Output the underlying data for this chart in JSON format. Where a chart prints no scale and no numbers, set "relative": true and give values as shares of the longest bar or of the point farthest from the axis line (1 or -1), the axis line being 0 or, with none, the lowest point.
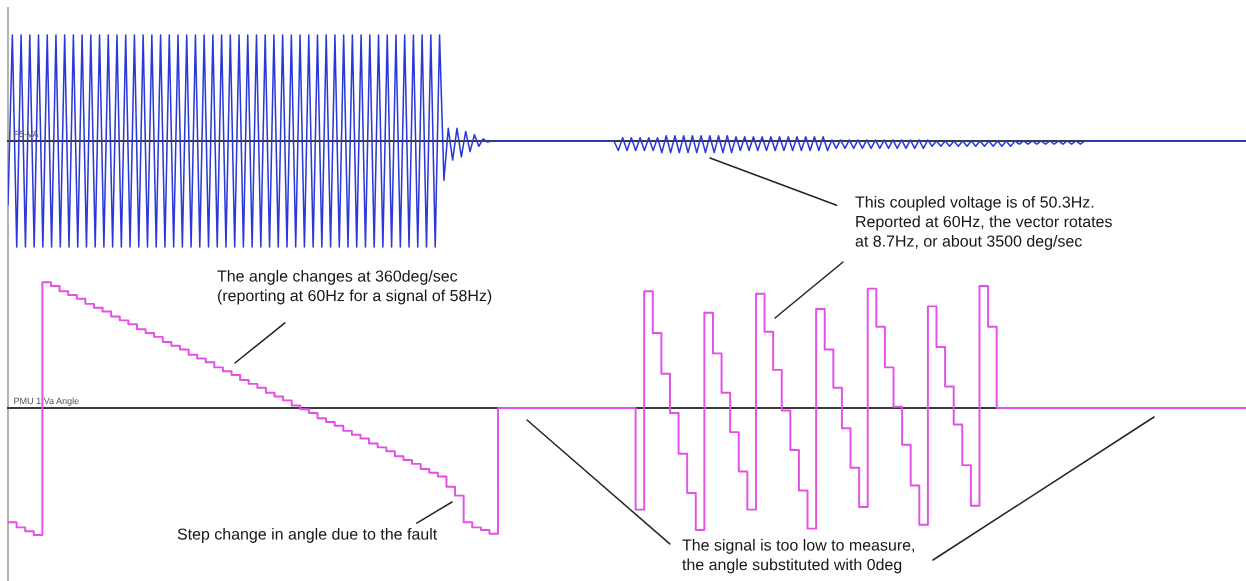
{
  "chart_data": [
    {
      "type": "line",
      "relative": true,
      "categories": [
        null,
        null,
        null,
        null,
        null,
        null,
        null,
        null,
        null,
        null,
        null,
        null,
        null,
        null,
        null,
        null,
        null,
        null,
        null,
        null,
        null,
        null,
        null,
        null,
        null,
        null,
        null,
        null,
        null,
        null,
        null,
        null,
        null,
        null,
        null,
        null,
        null,
        null,
        null,
        null,
        null,
        null,
        null,
        null,
        null,
        null,
        null,
        null,
        null,
        null,
        null,
        null,
        null,
        null,
        null,
        null,
        null,
        null,
        null,
        null,
        null,
        null,
        null,
        null,
        null,
        null,
        null,
        null,
        null,
        null,
        null,
        null,
        null,
        null,
        null,
        null,
        null,
        null,
        null,
        null,
        null,
        null,
        null,
        null,
        null,
        null,
        null,
        null,
        null,
        null,
        null,
        null,
        null,
        null,
        null,
        null,
        null,
        null,
        null,
        null,
        null,
        null,
        null,
        null,
        null,
        null,
        null,
        null,
        null,
        null,
        null,
        null,
        null,
        null,
        null,
        null,
        null,
        null,
        null,
        null,
        null,
        null,
        null,
        null,
        null,
        null,
        null,
        null,
        null,
        null,
        null,
        null,
        null,
        null,
        null,
        null,
        null,
        null,
        null,
        null,
        null,
        null,
        null,
        null,
        null,
        null,
        null,
        null,
        null,
        null,
        null,
        null,
        null,
        null,
        null,
        null,
        null,
        null,
        null,
        null,
        null,
        null,
        null,
        null,
        null,
        null,
        null,
        null,
        null,
        null,
        null,
        null,
        null,
        null,
        null,
        null,
        null,
        null,
        null,
        null,
        null,
        null,
        null,
        null,
        null,
        null,
        null,
        null,
        null,
        null,
        null,
        null,
        null,
        null,
        null,
        null,
        null,
        null,
        null,
        null,
        null,
        null,
        null,
        null,
        null,
        null,
        null,
        null,
        null,
        null,
        null,
        null,
        null,
        null,
        null,
        null,
        null,
        null,
        null,
        null,
        null,
        null,
        null,
        null,
        null,
        null,
        null,
        null,
        null,
        null,
        null,
        null,
        null,
        null,
        null,
        null,
        null,
        null,
        null,
        null,
        null,
        null,
        null,
        null,
        null,
        null,
        null,
        null,
        null,
        null,
        null,
        null,
        null,
        null,
        null,
        null,
        null,
        null,
        null,
        null,
        null,
        null,
        null,
        null,
        null,
        null,
        null,
        null,
        null,
        null,
        null,
        null,
        null,
        null,
        null,
        null,
        null,
        null,
        null,
        null,
        null,
        null,
        null,
        null,
        null
      ],
      "series": [
        {
          "name": "F5-VA",
          "color": "#2b38d9",
          "values": [
            -0.6,
            1,
            -1,
            1,
            -1,
            1,
            -1,
            1,
            -1,
            1,
            -1,
            1,
            -1,
            1,
            -1,
            1,
            -1,
            1,
            -1,
            1,
            -1,
            1,
            -1,
            1,
            -1,
            1,
            -1,
            1,
            -1,
            1,
            -1,
            1,
            -1,
            1,
            -1,
            1,
            -1,
            1,
            -1,
            1,
            -1,
            1,
            -1,
            1,
            -1,
            1,
            -1,
            1,
            -1,
            1,
            -1,
            1,
            -1,
            1,
            -1,
            1,
            -1,
            1,
            -1,
            1,
            -1,
            1,
            -1,
            1,
            -1,
            1,
            -1,
            1,
            -1,
            1,
            -1,
            1,
            -1,
            1,
            -1,
            1,
            -1,
            1,
            -1,
            1,
            -1,
            1,
            -1,
            1,
            -1,
            1,
            -1,
            1,
            -1,
            1,
            -1,
            1,
            -1,
            1,
            -1,
            1,
            -1,
            1,
            -1,
            1,
            -0.37,
            0.12,
            -0.18,
            0.12,
            -0.15,
            0.09,
            -0.1,
            0.06,
            -0.05,
            0.02,
            -0.01,
            0,
            0,
            0,
            0,
            0,
            0,
            0,
            0,
            0,
            0,
            0,
            0,
            0,
            0,
            0,
            0,
            0,
            0,
            0,
            0,
            0,
            0,
            0,
            0,
            0,
            0,
            0,
            0,
            0,
            -0.09,
            0.03,
            -0.09,
            0.03,
            -0.09,
            0.03,
            -0.09,
            0.03,
            -0.09,
            0.03,
            -0.11,
            0.05,
            -0.11,
            0.05,
            -0.11,
            0.05,
            -0.11,
            0.05,
            -0.11,
            0.05,
            -0.11,
            0.05,
            -0.11,
            0.05,
            -0.11,
            0.05,
            -0.11,
            0.04,
            -0.09,
            0.04,
            -0.09,
            0.04,
            -0.09,
            0.04,
            -0.09,
            0.04,
            -0.09,
            0.04,
            -0.09,
            0.04,
            -0.09,
            0.04,
            -0.09,
            0.04,
            -0.09,
            0.04,
            -0.09,
            0.04,
            -0.09,
            0.01,
            -0.07,
            0.01,
            -0.07,
            0.01,
            -0.07,
            0.01,
            -0.07,
            0.01,
            -0.07,
            0.01,
            -0.07,
            0.01,
            -0.07,
            0.01,
            -0.07,
            0.01,
            -0.07,
            0.01,
            -0.07,
            0.01,
            -0.07,
            0.01,
            -0.05,
            0,
            -0.05,
            0,
            -0.05,
            0,
            -0.05,
            0,
            -0.05,
            0,
            -0.05,
            0,
            -0.05,
            0,
            -0.05,
            0,
            -0.05,
            0,
            -0.05,
            0,
            -0.03,
            0,
            -0.03,
            0,
            -0.03,
            0,
            -0.03,
            0,
            -0.03,
            0,
            -0.03,
            0,
            -0.03,
            0,
            -0.03,
            0,
            0,
            0,
            0,
            0,
            0,
            0,
            0,
            0,
            0,
            0,
            0,
            0,
            0,
            0,
            0,
            0,
            0,
            0,
            0,
            0,
            0,
            0,
            0,
            0,
            0,
            0,
            0,
            0,
            0,
            0,
            0,
            0,
            0,
            0,
            0,
            0,
            0
          ]
        }
      ],
      "annotations": [
        "This coupled voltage is of 50.3Hz.\nReported at 60Hz, the vector rotates\nat 8.7Hz, or about 3500 deg/sec"
      ]
    },
    {
      "type": "step",
      "relative": true,
      "categories": [
        null,
        null,
        null,
        null,
        null,
        null,
        null,
        null,
        null,
        null,
        null,
        null,
        null,
        null,
        null,
        null,
        null,
        null,
        null,
        null,
        null,
        null,
        null,
        null,
        null,
        null,
        null,
        null,
        null,
        null,
        null,
        null,
        null,
        null,
        null,
        null,
        null,
        null,
        null,
        null,
        null,
        null,
        null,
        null,
        null,
        null,
        null,
        null,
        null,
        null,
        null,
        null,
        null,
        null,
        null,
        null,
        null,
        null,
        null,
        null,
        null,
        null,
        null,
        null,
        null,
        null,
        null,
        null,
        null,
        null,
        null,
        null,
        null,
        null,
        null,
        null,
        null,
        null,
        null,
        null,
        null,
        null,
        null,
        null,
        null,
        null,
        null,
        null,
        null,
        null,
        null,
        null,
        null,
        null,
        null,
        null,
        null,
        null,
        null,
        null,
        null,
        null,
        null,
        null,
        null,
        null,
        null,
        null,
        null,
        null,
        null,
        null,
        null,
        null,
        null,
        null,
        null,
        null,
        null,
        null,
        null,
        null,
        null,
        null,
        null,
        null,
        null,
        null,
        null,
        null,
        null,
        null,
        null,
        null,
        null,
        null,
        null,
        null,
        null,
        null,
        null,
        null,
        null,
        null,
        null
      ],
      "series": [
        {
          "name": "PMU 1 Va Angle",
          "color": "#e34fe8",
          "values": [
            -0.9,
            -0.94,
            -0.97,
            -1,
            0.99,
            0.96,
            0.92,
            0.89,
            0.86,
            0.82,
            0.79,
            0.76,
            0.72,
            0.69,
            0.66,
            0.62,
            0.59,
            0.56,
            0.52,
            0.49,
            0.46,
            0.42,
            0.39,
            0.36,
            0.32,
            0.29,
            0.26,
            0.22,
            0.19,
            0.16,
            0.12,
            0.09,
            0.06,
            0.02,
            -0.01,
            -0.04,
            -0.08,
            -0.11,
            -0.14,
            -0.18,
            -0.21,
            -0.24,
            -0.28,
            -0.31,
            -0.34,
            -0.38,
            -0.41,
            -0.44,
            -0.48,
            -0.51,
            -0.54,
            -0.62,
            -0.69,
            -0.9,
            -0.94,
            -0.96,
            -0.99,
            0,
            0,
            0,
            0,
            0,
            0,
            0,
            0,
            0,
            0,
            0,
            0,
            0,
            0,
            0,
            0,
            -0.8,
            0.92,
            0.59,
            0.27,
            -0.04,
            -0.36,
            -0.67,
            -0.96,
            0.75,
            0.43,
            0.12,
            -0.19,
            -0.5,
            -0.8,
            0.9,
            0.6,
            0.3,
            -0.02,
            -0.33,
            -0.65,
            -0.95,
            0.78,
            0.46,
            0.16,
            -0.16,
            -0.47,
            -0.78,
            0.94,
            0.64,
            0.32,
            0.01,
            -0.29,
            -0.61,
            -0.92,
            0.8,
            0.48,
            0.17,
            -0.13,
            -0.45,
            -0.77,
            0.96,
            0.64,
            0,
            0,
            0,
            0,
            0,
            0,
            0,
            0,
            0,
            0,
            0,
            0,
            0,
            0,
            0,
            0,
            0,
            0,
            0,
            0,
            0,
            0,
            0,
            0,
            0,
            0,
            0,
            0,
            0,
            0
          ]
        }
      ],
      "annotations": [
        "The angle changes at 360deg/sec\n(reporting at 60Hz for a signal of 58Hz)",
        "Step change in angle due to the fault",
        "The signal is too low to measure,\nthe angle substituted with 0deg"
      ]
    }
  ]
}
